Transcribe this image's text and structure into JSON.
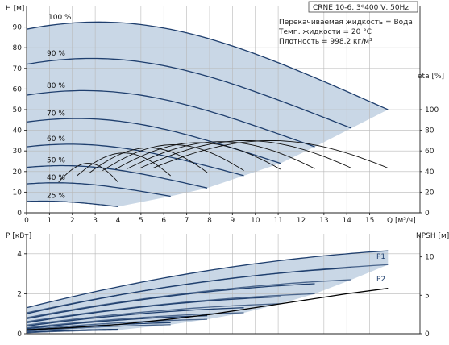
{
  "chart_data": [
    {
      "type": "line",
      "title": "",
      "info_box": "CRNE 10-6, 3*400 V, 50Hz",
      "info_lines": [
        "Перекачиваемая жидкость = Вода",
        "Темп. жидкости = 20 °C",
        "Плотность = 998.2 кг/м³"
      ],
      "xlabel": "Q [м³/ч]",
      "ylabel": "H [м]",
      "y2label": "eta [%]",
      "x_ticks": [
        "0",
        "1",
        "2",
        "3",
        "4",
        "5",
        "6",
        "7",
        "8",
        "9",
        "10",
        "11",
        "12",
        "13",
        "14",
        "15"
      ],
      "y_ticks": [
        "0",
        "10",
        "20",
        "30",
        "40",
        "50",
        "60",
        "70",
        "80",
        "90"
      ],
      "y2_ticks": [
        "0",
        "20",
        "40",
        "60",
        "80",
        "100"
      ],
      "xlim": [
        0,
        17.2
      ],
      "ylim": [
        0,
        100
      ],
      "y2lim": [
        0,
        200
      ],
      "grid": true,
      "series": [
        {
          "name": "100 %",
          "q_max": 15.8,
          "h0": 89,
          "h_end": 50,
          "bulge": 0.06
        },
        {
          "name": "90 %",
          "q_max": 14.2,
          "h0": 72,
          "h_end": 41,
          "bulge": 0.06
        },
        {
          "name": "80 %",
          "q_max": 12.6,
          "h0": 57,
          "h_end": 32,
          "bulge": 0.06
        },
        {
          "name": "70 %",
          "q_max": 11.1,
          "h0": 44,
          "h_end": 24,
          "bulge": 0.06
        },
        {
          "name": "60 %",
          "q_max": 9.5,
          "h0": 32,
          "h_end": 18,
          "bulge": 0.06
        },
        {
          "name": "50 %",
          "q_max": 7.9,
          "h0": 22,
          "h_end": 12,
          "bulge": 0.06
        },
        {
          "name": "40 %",
          "q_max": 6.3,
          "h0": 14,
          "h_end": 8,
          "bulge": 0.06
        },
        {
          "name": "25 %",
          "q_max": 4.0,
          "h0": 5.5,
          "h_end": 3,
          "bulge": 0.05
        }
      ],
      "efficiency_series": [
        {
          "q_max": 15.8,
          "eta_max": 70
        },
        {
          "q_max": 14.2,
          "eta_max": 70
        },
        {
          "q_max": 12.6,
          "eta_max": 69
        },
        {
          "q_max": 11.1,
          "eta_max": 68
        },
        {
          "q_max": 9.5,
          "eta_max": 66
        },
        {
          "q_max": 7.9,
          "eta_max": 63
        },
        {
          "q_max": 6.3,
          "eta_max": 58
        },
        {
          "q_max": 4.0,
          "eta_max": 48
        }
      ]
    },
    {
      "type": "line",
      "title": "",
      "xlabel": "",
      "ylabel": "P [кВт]",
      "y2label": "NPSH [м]",
      "y_ticks": [
        "0",
        "2",
        "4"
      ],
      "y2_ticks": [
        "0",
        "5",
        "10"
      ],
      "ylim": [
        0,
        5
      ],
      "y2lim": [
        0,
        13
      ],
      "legend_labels": [
        "P1",
        "P2"
      ],
      "p1_curves": [
        {
          "q_max": 15.8,
          "p0": 1.3,
          "p_end": 4.15
        },
        {
          "q_max": 14.2,
          "p0": 1.0,
          "p_end": 3.3
        },
        {
          "q_max": 12.6,
          "p0": 0.75,
          "p_end": 2.5
        },
        {
          "q_max": 11.1,
          "p0": 0.55,
          "p_end": 1.85
        },
        {
          "q_max": 9.5,
          "p0": 0.38,
          "p_end": 1.3
        },
        {
          "q_max": 7.9,
          "p0": 0.25,
          "p_end": 0.9
        },
        {
          "q_max": 6.3,
          "p0": 0.15,
          "p_end": 0.55
        },
        {
          "q_max": 4.0,
          "p0": 0.07,
          "p_end": 0.22
        }
      ],
      "p2_curves": [
        {
          "q_max": 15.8,
          "p0": 1.05,
          "p_end": 3.45
        },
        {
          "q_max": 14.2,
          "p0": 0.8,
          "p_end": 2.7
        },
        {
          "q_max": 12.6,
          "p0": 0.6,
          "p_end": 2.0
        },
        {
          "q_max": 11.1,
          "p0": 0.43,
          "p_end": 1.5
        },
        {
          "q_max": 9.5,
          "p0": 0.3,
          "p_end": 1.05
        },
        {
          "q_max": 7.9,
          "p0": 0.2,
          "p_end": 0.72
        },
        {
          "q_max": 6.3,
          "p0": 0.12,
          "p_end": 0.45
        },
        {
          "q_max": 4.0,
          "p0": 0.05,
          "p_end": 0.18
        }
      ],
      "npsh_curve": {
        "q": [
          0,
          2,
          4,
          6,
          8,
          10,
          12,
          14,
          15.8
        ],
        "npsh": [
          0.5,
          0.8,
          1.2,
          1.8,
          2.5,
          3.4,
          4.3,
          5.2,
          5.9
        ]
      }
    }
  ]
}
